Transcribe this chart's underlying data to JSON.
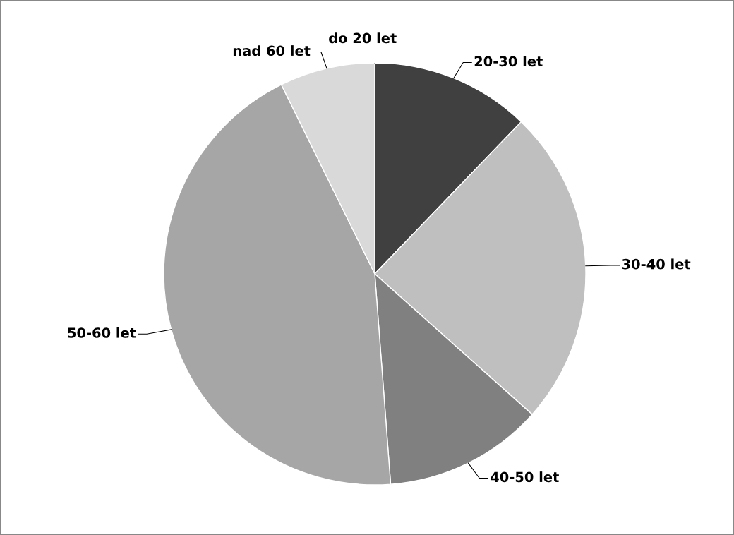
{
  "chart_data": {
    "type": "pie",
    "categories": [
      "do 20 let",
      "20-30 let",
      "30-40 let",
      "40-50 let",
      "50-60 let",
      "nad 60 let"
    ],
    "values": [
      0,
      12.2,
      24.4,
      12.2,
      43.9,
      7.3
    ],
    "colors": [
      "#262626",
      "#404040",
      "#bfbfbf",
      "#808080",
      "#a6a6a6",
      "#d9d9d9"
    ]
  }
}
